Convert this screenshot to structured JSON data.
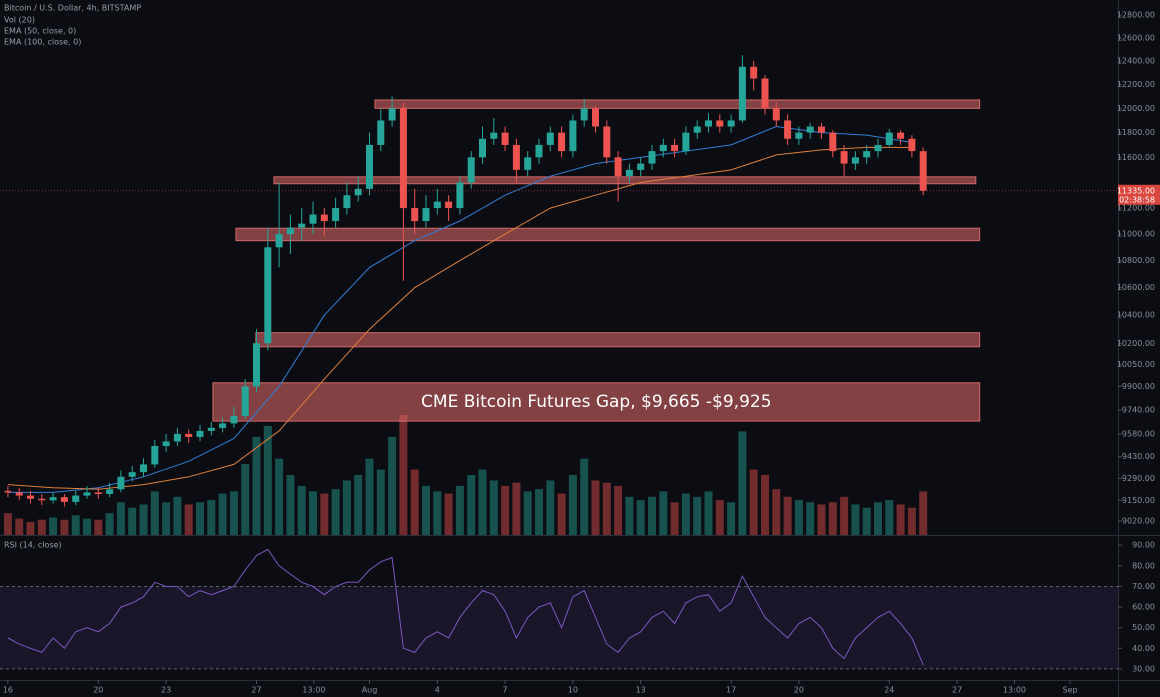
{
  "chart_data": {
    "type": "candlestick",
    "title": "Bitcoin / U.S. Dollar, 4h, BITSTAMP",
    "indicators": [
      "Vol (20)",
      "EMA (50, close, 0)",
      "EMA (100, close, 0)"
    ],
    "log_scale": true,
    "up_color": "#26a69a",
    "down_color": "#ef5350",
    "xlim": [
      15.65,
      65.12
    ],
    "xticks": [
      16,
      20,
      23,
      27,
      {
        "value": 29.54,
        "label": "13:00"
      },
      {
        "value": 32,
        "label": "Aug"
      },
      {
        "value": 35,
        "label": "4"
      },
      {
        "value": 38,
        "label": "7"
      },
      {
        "value": 41,
        "label": "10"
      },
      {
        "value": 44,
        "label": "13"
      },
      {
        "value": 48,
        "label": "17"
      },
      {
        "value": 51,
        "label": "20"
      },
      {
        "value": 55,
        "label": "24"
      },
      {
        "value": 58,
        "label": "27"
      },
      {
        "value": 60.54,
        "label": "13:00"
      },
      {
        "value": 63,
        "label": "Sep"
      }
    ],
    "ylim": [
      8933,
      12934
    ],
    "yticks": [
      {
        "value": 12800,
        "label": "12800.00"
      },
      {
        "value": 12600,
        "label": "12600.00"
      },
      {
        "value": 12400,
        "label": "12400.00"
      },
      {
        "value": 12200,
        "label": "12200.00"
      },
      {
        "value": 12000,
        "label": "12000.00"
      },
      {
        "value": 11800,
        "label": "11800.00"
      },
      {
        "value": 11600,
        "label": "11600.00"
      },
      {
        "value": 11200,
        "label": "11200.00"
      },
      {
        "value": 11000,
        "label": "11000.00"
      },
      {
        "value": 10800,
        "label": "10800.00"
      },
      {
        "value": 10600,
        "label": "10600.00"
      },
      {
        "value": 10400,
        "label": "10400.00"
      },
      {
        "value": 10200,
        "label": "10200.00"
      },
      {
        "value": 10050,
        "label": "10050.00"
      },
      {
        "value": 9900,
        "label": "9900.00"
      },
      {
        "value": 9740,
        "label": "9740.00"
      },
      {
        "value": 9580,
        "label": "9580.00"
      },
      {
        "value": 9430,
        "label": "9430.00"
      },
      {
        "value": 9290,
        "label": "9290.00"
      },
      {
        "value": 9150,
        "label": "9150.00"
      },
      {
        "value": 9020,
        "label": "9020.00"
      }
    ],
    "x": [
      16,
      16.5,
      17,
      17.5,
      18,
      18.5,
      19,
      19.5,
      20,
      20.5,
      21,
      21.5,
      22,
      22.5,
      23,
      23.5,
      24,
      24.5,
      25,
      25.5,
      26,
      26.5,
      27,
      27.5,
      28,
      28.5,
      29,
      29.5,
      30,
      30.5,
      31,
      31.5,
      32,
      32.5,
      33,
      33.5,
      34,
      34.5,
      35,
      35.5,
      36,
      36.5,
      37,
      37.5,
      38,
      38.5,
      39,
      39.5,
      40,
      40.5,
      41,
      41.5,
      42,
      42.5,
      43,
      43.5,
      44,
      44.5,
      45,
      45.5,
      46,
      46.5,
      47,
      47.5,
      48,
      48.5,
      49,
      49.5,
      50,
      50.5,
      51,
      51.5,
      52,
      52.5,
      53,
      53.5,
      54,
      54.5,
      55,
      55.5,
      56,
      56.5
    ],
    "ohlc": [
      [
        9210,
        9240,
        9170,
        9200
      ],
      [
        9200,
        9230,
        9150,
        9180
      ],
      [
        9180,
        9210,
        9130,
        9160
      ],
      [
        9160,
        9190,
        9120,
        9150
      ],
      [
        9150,
        9200,
        9130,
        9170
      ],
      [
        9170,
        9190,
        9110,
        9140
      ],
      [
        9140,
        9210,
        9120,
        9180
      ],
      [
        9180,
        9240,
        9160,
        9200
      ],
      [
        9200,
        9230,
        9160,
        9190
      ],
      [
        9190,
        9260,
        9170,
        9220
      ],
      [
        9220,
        9340,
        9200,
        9300
      ],
      [
        9300,
        9370,
        9270,
        9330
      ],
      [
        9330,
        9420,
        9300,
        9380
      ],
      [
        9380,
        9540,
        9360,
        9500
      ],
      [
        9500,
        9580,
        9460,
        9530
      ],
      [
        9530,
        9620,
        9500,
        9580
      ],
      [
        9580,
        9610,
        9520,
        9560
      ],
      [
        9560,
        9640,
        9530,
        9600
      ],
      [
        9600,
        9660,
        9570,
        9620
      ],
      [
        9620,
        9690,
        9590,
        9650
      ],
      [
        9650,
        9760,
        9620,
        9700
      ],
      [
        9700,
        9950,
        9680,
        9900
      ],
      [
        9900,
        10300,
        9860,
        10200
      ],
      [
        10200,
        11050,
        10150,
        10900
      ],
      [
        10900,
        11400,
        10750,
        11000
      ],
      [
        11000,
        11150,
        10850,
        11050
      ],
      [
        11050,
        11200,
        10950,
        11080
      ],
      [
        11080,
        11250,
        11000,
        11150
      ],
      [
        11150,
        11200,
        10980,
        11100
      ],
      [
        11100,
        11280,
        11050,
        11200
      ],
      [
        11200,
        11400,
        11150,
        11300
      ],
      [
        11300,
        11450,
        11250,
        11350
      ],
      [
        11350,
        11800,
        11300,
        11700
      ],
      [
        11700,
        12000,
        11650,
        11900
      ],
      [
        11900,
        12100,
        11850,
        12000
      ],
      [
        12000,
        12050,
        10650,
        11200
      ],
      [
        11200,
        11350,
        11000,
        11100
      ],
      [
        11100,
        11300,
        11050,
        11200
      ],
      [
        11200,
        11350,
        11150,
        11250
      ],
      [
        11250,
        11300,
        11100,
        11200
      ],
      [
        11200,
        11450,
        11150,
        11400
      ],
      [
        11400,
        11650,
        11350,
        11600
      ],
      [
        11600,
        11850,
        11550,
        11750
      ],
      [
        11750,
        11920,
        11700,
        11800
      ],
      [
        11800,
        11850,
        11650,
        11700
      ],
      [
        11700,
        11750,
        11400,
        11500
      ],
      [
        11500,
        11650,
        11450,
        11600
      ],
      [
        11600,
        11750,
        11550,
        11700
      ],
      [
        11700,
        11850,
        11650,
        11800
      ],
      [
        11800,
        11850,
        11600,
        11650
      ],
      [
        11650,
        11950,
        11600,
        11900
      ],
      [
        11900,
        12080,
        11850,
        12000
      ],
      [
        12000,
        12020,
        11800,
        11850
      ],
      [
        11850,
        11900,
        11550,
        11600
      ],
      [
        11600,
        11650,
        11250,
        11450
      ],
      [
        11450,
        11550,
        11400,
        11500
      ],
      [
        11500,
        11600,
        11450,
        11550
      ],
      [
        11550,
        11700,
        11500,
        11650
      ],
      [
        11650,
        11750,
        11600,
        11700
      ],
      [
        11700,
        11750,
        11600,
        11650
      ],
      [
        11650,
        11850,
        11620,
        11800
      ],
      [
        11800,
        11900,
        11750,
        11850
      ],
      [
        11850,
        11960,
        11800,
        11900
      ],
      [
        11900,
        11950,
        11800,
        11850
      ],
      [
        11850,
        11950,
        11800,
        11900
      ],
      [
        11900,
        12450,
        11880,
        12350
      ],
      [
        12350,
        12400,
        12150,
        12250
      ],
      [
        12250,
        12280,
        11950,
        12000
      ],
      [
        12000,
        12050,
        11850,
        11900
      ],
      [
        11900,
        11950,
        11700,
        11750
      ],
      [
        11750,
        11850,
        11700,
        11800
      ],
      [
        11800,
        11880,
        11750,
        11850
      ],
      [
        11850,
        11880,
        11750,
        11800
      ],
      [
        11800,
        11820,
        11600,
        11650
      ],
      [
        11650,
        11700,
        11450,
        11550
      ],
      [
        11550,
        11650,
        11500,
        11600
      ],
      [
        11600,
        11700,
        11550,
        11650
      ],
      [
        11650,
        11750,
        11600,
        11700
      ],
      [
        11700,
        11830,
        11680,
        11800
      ],
      [
        11800,
        11820,
        11700,
        11750
      ],
      [
        11750,
        11780,
        11600,
        11650
      ],
      [
        11650,
        11680,
        11300,
        11335
      ]
    ],
    "volume": {
      "lim": [
        0,
        110
      ],
      "values": [
        20,
        15,
        12,
        14,
        16,
        14,
        18,
        15,
        14,
        20,
        30,
        25,
        28,
        40,
        30,
        35,
        28,
        30,
        32,
        38,
        40,
        65,
        90,
        100,
        70,
        55,
        45,
        40,
        38,
        42,
        50,
        55,
        70,
        60,
        90,
        110,
        60,
        45,
        40,
        38,
        45,
        55,
        60,
        50,
        45,
        48,
        40,
        42,
        50,
        38,
        55,
        70,
        50,
        48,
        45,
        35,
        32,
        35,
        40,
        30,
        38,
        35,
        40,
        32,
        30,
        95,
        60,
        55,
        42,
        35,
        32,
        30,
        28,
        30,
        35,
        28,
        25,
        30,
        32,
        28,
        25,
        40
      ]
    },
    "ema": {
      "x": [
        16,
        18,
        20,
        22,
        24,
        26,
        28,
        30,
        32,
        34,
        36,
        38,
        40,
        42,
        44,
        46,
        48,
        50,
        52,
        54,
        56
      ],
      "series": [
        {
          "color": "#2f7fd8",
          "values": [
            9200,
            9200,
            9230,
            9300,
            9400,
            9550,
            9900,
            10400,
            10750,
            10950,
            11100,
            11300,
            11450,
            11550,
            11600,
            11650,
            11700,
            11850,
            11800,
            11780,
            11720
          ]
        },
        {
          "color": "#e0803a",
          "values": [
            9250,
            9230,
            9220,
            9250,
            9300,
            9380,
            9600,
            9950,
            10300,
            10600,
            10800,
            11000,
            11200,
            11300,
            11400,
            11450,
            11500,
            11620,
            11660,
            11680,
            11680
          ]
        }
      ]
    },
    "zones": [
      {
        "range": [
          12000,
          12070
        ],
        "x": [
          32.24,
          59.0
        ]
      },
      {
        "range": [
          11390,
          11445
        ],
        "x": [
          27.77,
          58.83
        ]
      },
      {
        "range": [
          10950,
          11045
        ],
        "x": [
          26.09,
          59.0
        ]
      },
      {
        "range": [
          10175,
          10275
        ],
        "x": [
          26.97,
          59.0
        ]
      },
      {
        "range": [
          9665,
          9925
        ],
        "x": [
          25.07,
          59.0
        ],
        "label": "CME Bitcoin Futures Gap, $9,665 -$9,925"
      }
    ],
    "last_price": {
      "value": 11335,
      "label": "11335.00",
      "countdown": "02:38:58"
    },
    "rsi": {
      "title": "RSI (14, close)",
      "color": "#7e57c2",
      "band": [
        30,
        70
      ],
      "ylim": [
        24.6,
        94
      ],
      "yticks": [
        {
          "value": 90,
          "label": "90.00"
        },
        {
          "value": 80,
          "label": "80.00"
        },
        {
          "value": 70,
          "label": "70.00"
        },
        {
          "value": 60,
          "label": "60.00"
        },
        {
          "value": 50,
          "label": "50.00"
        },
        {
          "value": 40,
          "label": "40.00"
        },
        {
          "value": 30,
          "label": "30.00"
        }
      ],
      "values": [
        45,
        42,
        40,
        38,
        45,
        40,
        48,
        50,
        48,
        52,
        60,
        62,
        65,
        72,
        70,
        70,
        65,
        68,
        66,
        68,
        70,
        78,
        85,
        88,
        80,
        76,
        72,
        70,
        66,
        70,
        72,
        72,
        78,
        82,
        84,
        40,
        38,
        45,
        48,
        45,
        55,
        62,
        68,
        66,
        58,
        45,
        55,
        60,
        62,
        50,
        65,
        68,
        55,
        42,
        38,
        45,
        48,
        55,
        58,
        52,
        62,
        65,
        66,
        58,
        62,
        75,
        65,
        55,
        50,
        45,
        52,
        55,
        50,
        40,
        35,
        45,
        50,
        55,
        58,
        52,
        45,
        32
      ]
    }
  }
}
